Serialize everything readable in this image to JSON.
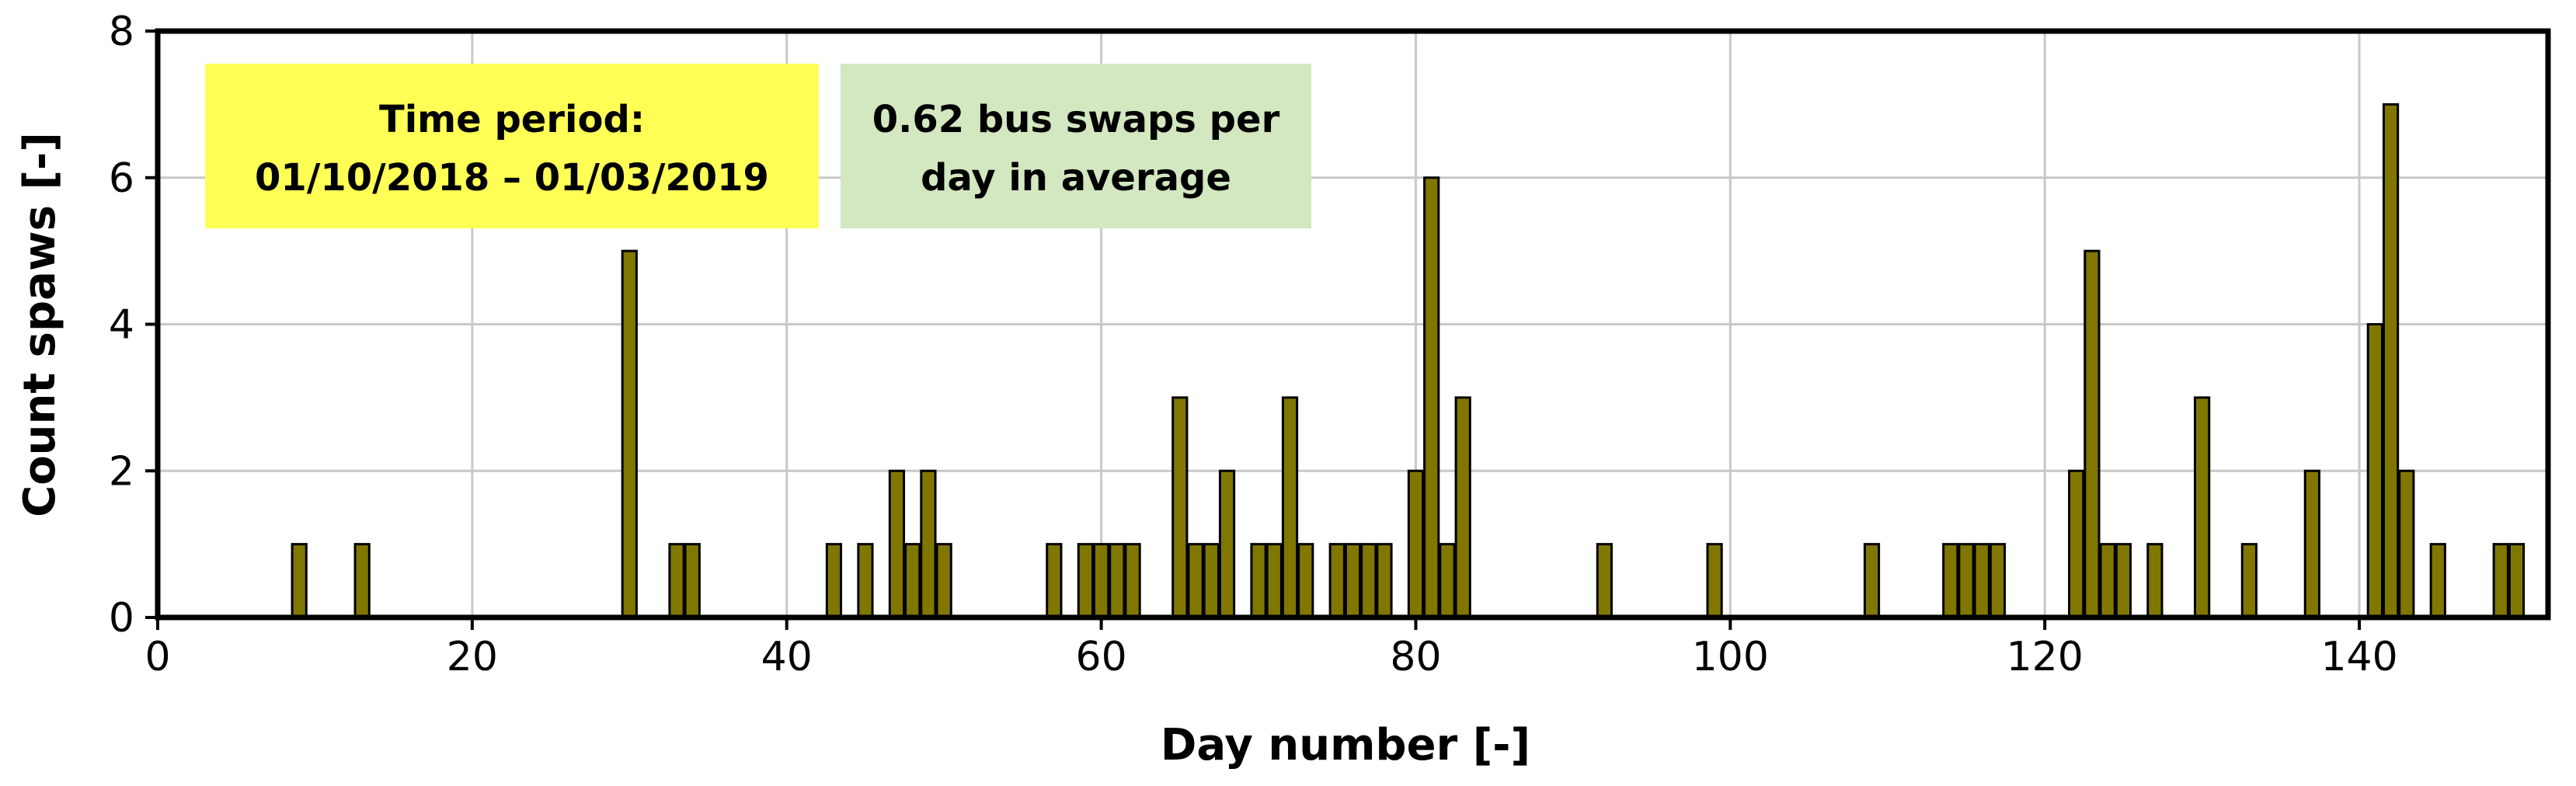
{
  "chart_data": {
    "type": "bar",
    "title": "",
    "xlabel": "Day number [-]",
    "ylabel": "Count spaws [-]",
    "xlim": [
      0,
      152
    ],
    "ylim": [
      0,
      8
    ],
    "x_ticks": [
      0,
      20,
      40,
      60,
      80,
      100,
      120,
      140
    ],
    "y_ticks": [
      0,
      2,
      4,
      6,
      8
    ],
    "grid": true,
    "bar_color": "#807700",
    "bar_edge_color": "#000000",
    "x": [
      9,
      13,
      30,
      33,
      34,
      43,
      45,
      47,
      48,
      49,
      50,
      57,
      59,
      60,
      61,
      62,
      65,
      66,
      67,
      68,
      70,
      71,
      72,
      73,
      75,
      76,
      77,
      78,
      80,
      81,
      82,
      83,
      92,
      99,
      109,
      114,
      115,
      116,
      117,
      122,
      123,
      124,
      125,
      127,
      130,
      133,
      137,
      141,
      142,
      143,
      145,
      149,
      150
    ],
    "values": [
      1,
      1,
      5,
      1,
      1,
      1,
      1,
      2,
      1,
      2,
      1,
      1,
      1,
      1,
      1,
      1,
      3,
      1,
      1,
      2,
      1,
      1,
      3,
      1,
      1,
      1,
      1,
      1,
      2,
      6,
      1,
      3,
      1,
      1,
      1,
      1,
      1,
      1,
      1,
      2,
      5,
      1,
      1,
      1,
      3,
      1,
      2,
      4,
      7,
      2,
      1,
      1,
      1
    ],
    "annotations": [
      {
        "lines": [
          "Time period:",
          "01/10/2018 – 01/03/2019"
        ],
        "background": "#ffff55"
      },
      {
        "lines": [
          "0.62 bus swaps per",
          "day in average"
        ],
        "background": "#d3e7c1"
      }
    ]
  }
}
